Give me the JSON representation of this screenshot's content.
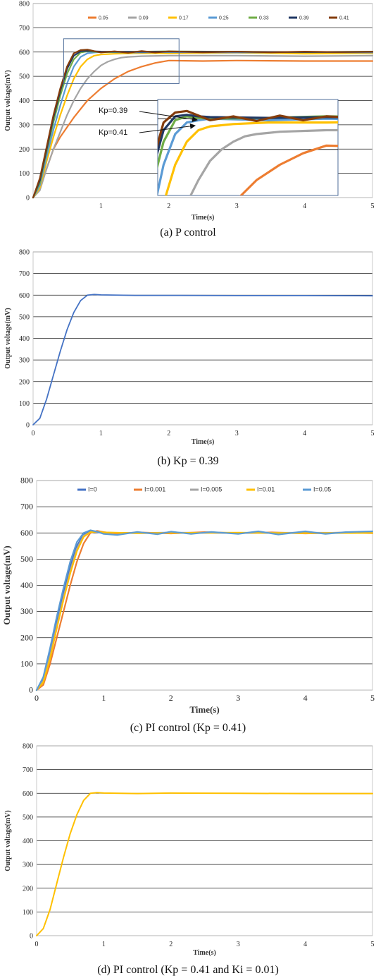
{
  "chart_data": [
    {
      "id": "a",
      "type": "line",
      "caption": "(a) P control",
      "xlabel": "Time(s)",
      "ylabel": "Output voltage(mV)",
      "xlim": [
        0,
        5
      ],
      "ylim": [
        0,
        800
      ],
      "xticks": [
        1,
        2,
        3,
        4,
        5
      ],
      "yticks": [
        0,
        100,
        200,
        300,
        400,
        500,
        600,
        700,
        800
      ],
      "legend_position": "top",
      "grid": "horizontal",
      "series": [
        {
          "name": "0.05",
          "color": "#ED7D31",
          "x": [
            0,
            0.1,
            0.2,
            0.3,
            0.4,
            0.6,
            0.8,
            1.0,
            1.2,
            1.4,
            1.6,
            1.8,
            2.0,
            2.5,
            3.0,
            4.0,
            5.0
          ],
          "y": [
            0,
            40,
            120,
            200,
            250,
            330,
            400,
            450,
            490,
            520,
            540,
            555,
            565,
            563,
            565,
            563,
            563
          ]
        },
        {
          "name": "0.09",
          "color": "#A5A5A5",
          "x": [
            0,
            0.1,
            0.2,
            0.3,
            0.4,
            0.5,
            0.6,
            0.7,
            0.8,
            0.9,
            1.0,
            1.1,
            1.2,
            1.3,
            1.4,
            1.6,
            2.0,
            3.0,
            4.0,
            5.0
          ],
          "y": [
            0,
            30,
            120,
            200,
            270,
            340,
            400,
            450,
            490,
            520,
            545,
            560,
            570,
            577,
            580,
            583,
            585,
            585,
            583,
            585
          ]
        },
        {
          "name": "0.17",
          "color": "#FFC000",
          "x": [
            0,
            0.1,
            0.2,
            0.3,
            0.4,
            0.5,
            0.6,
            0.7,
            0.8,
            0.9,
            1.0,
            1.2,
            1.5,
            2.0,
            3.0,
            4.0,
            5.0
          ],
          "y": [
            0,
            40,
            150,
            250,
            340,
            420,
            490,
            540,
            570,
            585,
            590,
            593,
            595,
            595,
            597,
            593,
            595
          ]
        },
        {
          "name": "0.25",
          "color": "#5B9BD5",
          "x": [
            0,
            0.1,
            0.2,
            0.3,
            0.4,
            0.5,
            0.6,
            0.7,
            0.8,
            0.9,
            1.0,
            1.5,
            2.0,
            3.0,
            4.0,
            5.0
          ],
          "y": [
            0,
            50,
            170,
            280,
            380,
            470,
            540,
            580,
            595,
            598,
            600,
            598,
            600,
            598,
            600,
            598
          ]
        },
        {
          "name": "0.33",
          "color": "#70AD47",
          "x": [
            0,
            0.1,
            0.2,
            0.3,
            0.4,
            0.5,
            0.6,
            0.7,
            0.8,
            0.9,
            1.0,
            1.5,
            2.0,
            3.0,
            4.0,
            5.0
          ],
          "y": [
            0,
            60,
            190,
            310,
            420,
            510,
            570,
            598,
            603,
            601,
            600,
            601,
            603,
            601,
            600,
            602
          ]
        },
        {
          "name": "0.39",
          "color": "#203864",
          "x": [
            0,
            0.1,
            0.2,
            0.3,
            0.4,
            0.5,
            0.6,
            0.7,
            0.8,
            0.9,
            1.0,
            1.5,
            2.0,
            3.0,
            4.0,
            5.0
          ],
          "y": [
            0,
            70,
            200,
            330,
            440,
            530,
            585,
            603,
            605,
            603,
            602,
            601,
            602,
            601,
            600,
            601
          ]
        },
        {
          "name": "0.41",
          "color": "#843C0C",
          "x": [
            0,
            0.1,
            0.2,
            0.3,
            0.4,
            0.5,
            0.6,
            0.7,
            0.8,
            0.9,
            1.0,
            1.2,
            1.4,
            1.6,
            1.8,
            2.0,
            2.5,
            3.0,
            3.5,
            4.0,
            4.5,
            5.0
          ],
          "y": [
            0,
            80,
            210,
            340,
            450,
            540,
            595,
            608,
            610,
            604,
            598,
            603,
            597,
            604,
            598,
            603,
            599,
            602,
            599,
            602,
            600,
            601
          ]
        }
      ],
      "annotations": [
        "Kp=0.39",
        "Kp=0.41"
      ]
    },
    {
      "id": "b",
      "type": "line",
      "caption": "(b) Kp = 0.39",
      "xlabel": "Time(s)",
      "ylabel": "Output voltage(mV)",
      "xlim": [
        0,
        5
      ],
      "ylim": [
        0,
        800
      ],
      "xticks": [
        0,
        1,
        2,
        3,
        4,
        5
      ],
      "yticks": [
        0,
        100,
        200,
        300,
        400,
        500,
        600,
        700,
        800
      ],
      "grid": "horizontal",
      "series": [
        {
          "color": "#4472C4",
          "x": [
            0,
            0.1,
            0.2,
            0.3,
            0.4,
            0.5,
            0.6,
            0.7,
            0.8,
            0.9,
            1.0,
            1.5,
            2.0,
            3.0,
            4.0,
            5.0
          ],
          "y": [
            0,
            30,
            120,
            230,
            340,
            440,
            520,
            575,
            600,
            603,
            601,
            599,
            599,
            598,
            598,
            597
          ]
        }
      ]
    },
    {
      "id": "c",
      "type": "line",
      "caption": "(c) PI control (Kp = 0.41)",
      "xlabel": "Time(s)",
      "ylabel": "Output voltage(mV)",
      "xlim": [
        0,
        5
      ],
      "ylim": [
        0,
        800
      ],
      "xticks": [
        0,
        1,
        2,
        3,
        4,
        5
      ],
      "yticks": [
        0,
        100,
        200,
        300,
        400,
        500,
        600,
        700,
        800
      ],
      "legend_position": "top",
      "grid": "horizontal",
      "series": [
        {
          "name": "I=0",
          "color": "#4472C4",
          "x": [
            0,
            0.1,
            0.2,
            0.3,
            0.4,
            0.5,
            0.6,
            0.7,
            0.8,
            0.9,
            1.0,
            1.5,
            2.0,
            3.0,
            4.0,
            5.0
          ],
          "y": [
            0,
            40,
            140,
            260,
            370,
            470,
            550,
            595,
            605,
            603,
            600,
            600,
            601,
            600,
            600,
            600
          ]
        },
        {
          "name": "I=0.001",
          "color": "#ED7D31",
          "x": [
            0,
            0.1,
            0.2,
            0.3,
            0.4,
            0.5,
            0.6,
            0.7,
            0.8,
            0.9,
            1.0,
            1.2,
            1.5,
            2.0,
            2.5,
            3.0,
            3.5,
            4.0,
            4.5,
            5.0
          ],
          "y": [
            0,
            20,
            100,
            200,
            300,
            400,
            490,
            560,
            600,
            608,
            603,
            597,
            602,
            598,
            603,
            599,
            602,
            598,
            601,
            599
          ]
        },
        {
          "name": "I=0.005",
          "color": "#A5A5A5",
          "x": [
            0,
            0.1,
            0.2,
            0.3,
            0.4,
            0.5,
            0.6,
            0.7,
            0.8,
            0.9,
            1.0,
            1.5,
            2.0,
            3.0,
            4.0,
            5.0
          ],
          "y": [
            0,
            35,
            130,
            245,
            355,
            455,
            540,
            590,
            603,
            604,
            601,
            599,
            601,
            600,
            601,
            600
          ]
        },
        {
          "name": "I=0.01",
          "color": "#FFC000",
          "x": [
            0,
            0.1,
            0.2,
            0.3,
            0.4,
            0.5,
            0.6,
            0.7,
            0.8,
            0.9,
            1.0,
            1.5,
            2.0,
            3.0,
            4.0,
            5.0
          ],
          "y": [
            0,
            30,
            120,
            235,
            345,
            445,
            530,
            585,
            603,
            605,
            602,
            599,
            600,
            601,
            599,
            600
          ]
        },
        {
          "name": "I=0.05",
          "color": "#5B9BD5",
          "x": [
            0,
            0.1,
            0.2,
            0.3,
            0.4,
            0.5,
            0.6,
            0.7,
            0.8,
            0.9,
            1.0,
            1.2,
            1.5,
            1.8,
            2.0,
            2.3,
            2.6,
            3.0,
            3.3,
            3.6,
            4.0,
            4.3,
            4.6,
            5.0
          ],
          "y": [
            0,
            50,
            160,
            280,
            390,
            490,
            565,
            600,
            610,
            605,
            596,
            592,
            604,
            595,
            605,
            596,
            604,
            596,
            606,
            594,
            606,
            596,
            603,
            606
          ]
        }
      ]
    },
    {
      "id": "d",
      "type": "line",
      "caption": "(d) PI control (Kp = 0.41 and Ki = 0.01)",
      "xlabel": "Time(s)",
      "ylabel": "Output voltage(mV)",
      "xlim": [
        0,
        5
      ],
      "ylim": [
        0,
        800
      ],
      "xticks": [
        0,
        1,
        2,
        3,
        4,
        5
      ],
      "yticks": [
        0,
        100,
        200,
        300,
        400,
        500,
        600,
        700,
        800
      ],
      "grid": "horizontal",
      "series": [
        {
          "color": "#FFC000",
          "x": [
            0,
            0.1,
            0.2,
            0.3,
            0.4,
            0.5,
            0.6,
            0.7,
            0.8,
            0.9,
            1.0,
            1.5,
            2.0,
            3.0,
            4.0,
            5.0
          ],
          "y": [
            0,
            30,
            110,
            220,
            330,
            430,
            510,
            570,
            600,
            603,
            601,
            599,
            601,
            600,
            599,
            599
          ]
        }
      ]
    }
  ]
}
